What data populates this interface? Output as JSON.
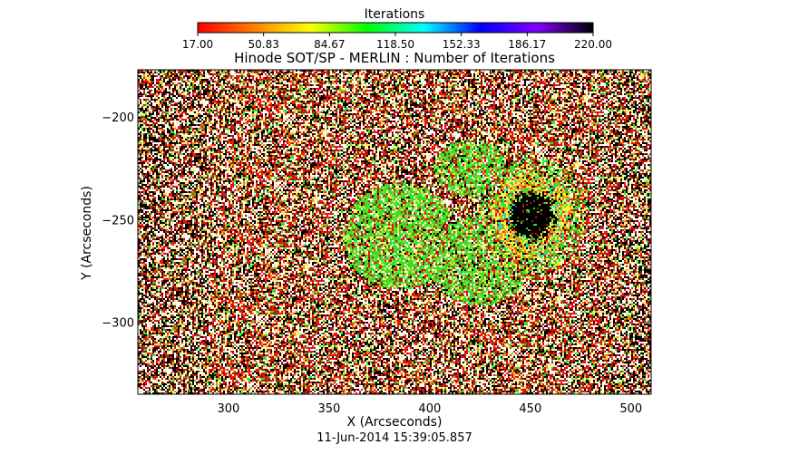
{
  "chart_data": {
    "type": "heatmap",
    "title": "Hinode SOT/SP - MERLIN : Number of Iterations",
    "xlabel": "X (Arcseconds)",
    "ylabel": "Y (Arcseconds)",
    "xlim": [
      255,
      510
    ],
    "ylim": [
      -335,
      -177
    ],
    "xticks": [
      300,
      350,
      400,
      450,
      500
    ],
    "yticks": [
      -200,
      -250,
      -300
    ],
    "timestamp": "11-Jun-2014 15:39:05.857",
    "colorbar": {
      "title": "Iterations",
      "min": 17.0,
      "max": 220.0,
      "tick_labels": [
        "17.00",
        "50.83",
        "84.67",
        "118.50",
        "152.33",
        "186.17",
        "220.00"
      ],
      "stops": [
        "#ff0000",
        "#ff8000",
        "#ffff00",
        "#00ff00",
        "#00ffff",
        "#0000ff",
        "#8000ff",
        "#000000"
      ]
    },
    "field_summary": {
      "background": "noisy speckle of white, black, red, green and yellow pixels",
      "structures": [
        {
          "name": "umbra",
          "center": [
            450,
            -248
          ],
          "value": "220 (black core)"
        },
        {
          "name": "penumbra ring",
          "center": [
            450,
            -248
          ],
          "value": "17-118 (yellow / orange / green)"
        },
        {
          "name": "plage region",
          "center": [
            385,
            -255
          ],
          "value": "~100-118 (green)"
        },
        {
          "name": "plage region",
          "center": [
            420,
            -268
          ],
          "value": "~100-118 (green)"
        }
      ]
    }
  }
}
